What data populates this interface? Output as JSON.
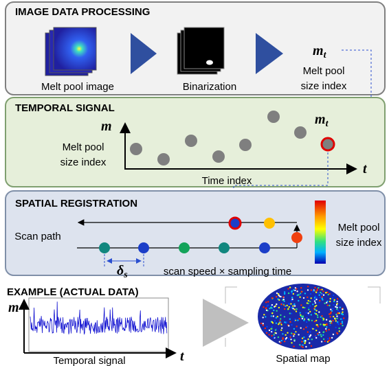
{
  "image_processing": {
    "title": "IMAGE DATA PROCESSING",
    "image_label": "Melt pool image",
    "binarization_label": "Binarization",
    "output_symbol": "m",
    "output_subscript": "t",
    "output_label_line1": "Melt pool",
    "output_label_line2": "size index"
  },
  "temporal_signal": {
    "title": "TEMPORAL SIGNAL",
    "y_axis_symbol": "m",
    "y_axis_label_line1": "Melt pool",
    "y_axis_label_line2": "size index",
    "x_axis_label": "Time index",
    "x_axis_symbol": "t",
    "point_symbol": "m",
    "point_subscript": "t"
  },
  "spatial_registration": {
    "title": "SPATIAL REGISTRATION",
    "path_label": "Scan path",
    "colorbar_label_line1": "Melt pool",
    "colorbar_label_line2": "size index",
    "spacing_symbol": "δ",
    "spacing_subscript": "s",
    "spacing_label": "scan speed × sampling time"
  },
  "example": {
    "title": "EXAMPLE (ACTUAL DATA)",
    "y_axis_symbol": "m",
    "signal_label": "Temporal signal",
    "x_axis_symbol": "t",
    "map_label": "Spatial map"
  }
}
